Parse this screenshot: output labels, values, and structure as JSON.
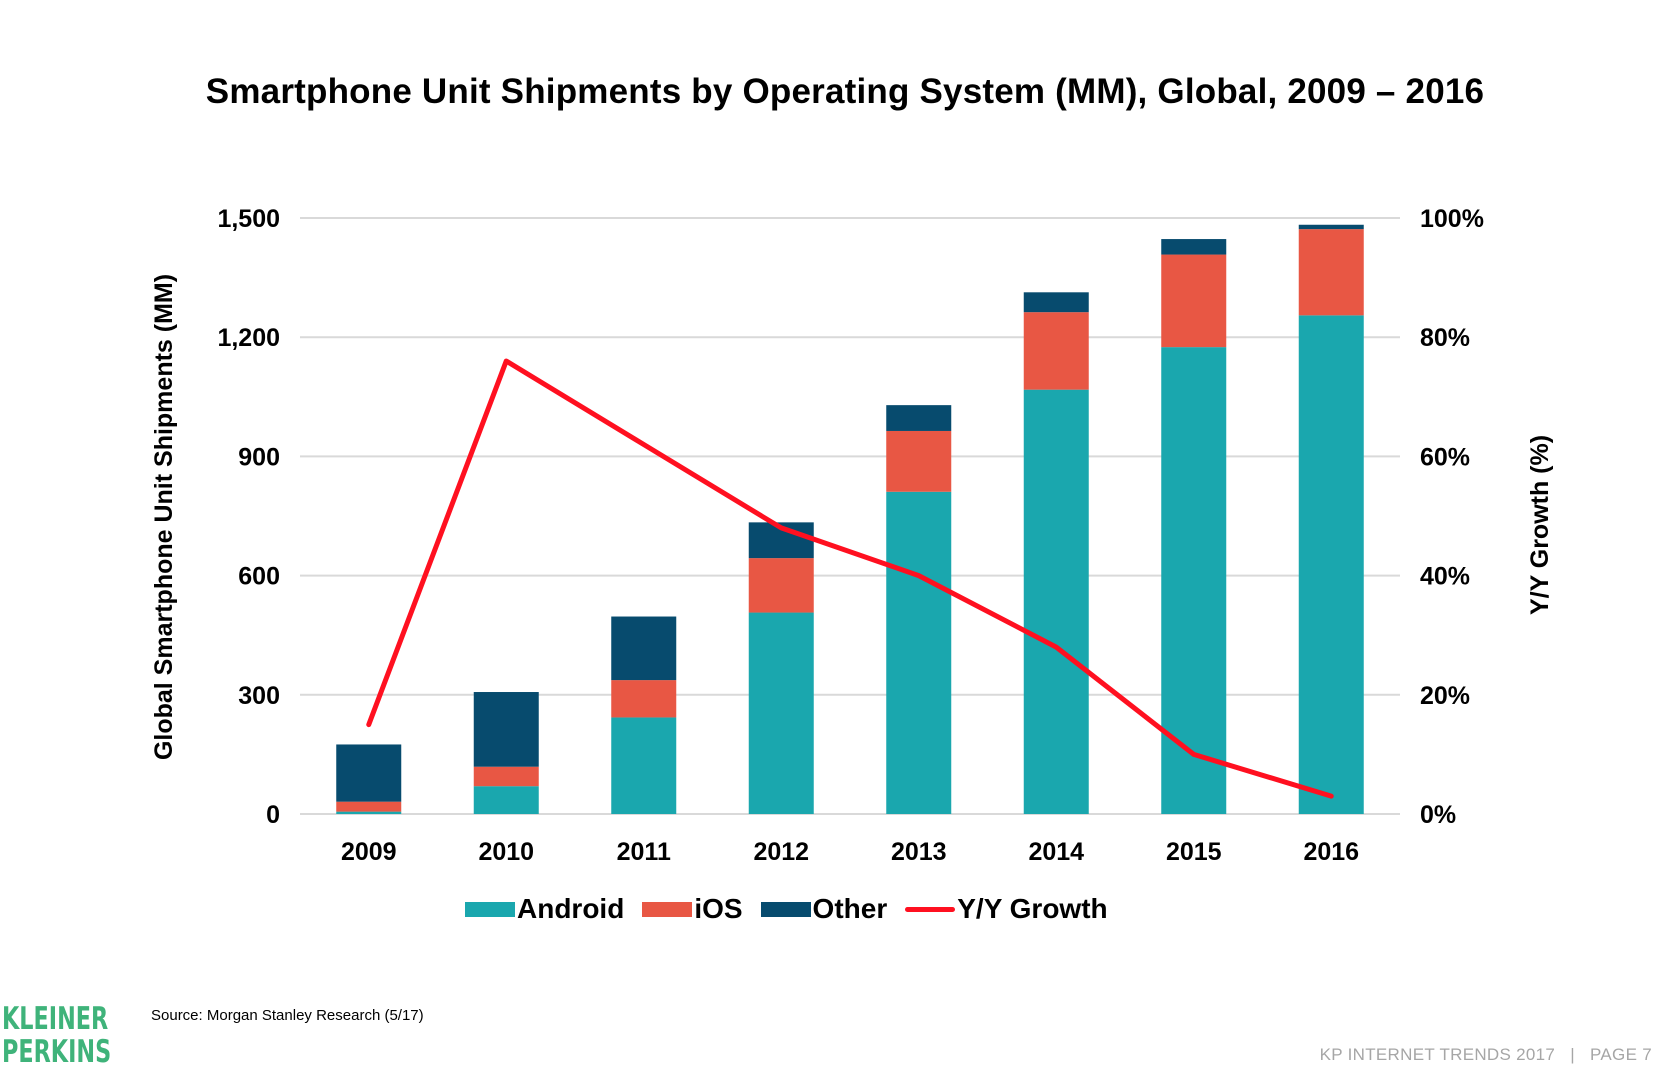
{
  "title": "Smartphone Unit Shipments by Operating System (MM), Global, 2009 – 2016",
  "source": "Source: Morgan Stanley Research (5/17)",
  "footer": "KP INTERNET TRENDS 2017   |   PAGE 7",
  "logo": {
    "line1": "KLEINER",
    "line2": "PERKINS"
  },
  "chart_data": {
    "type": "bar",
    "subtype": "stacked-bar-with-line",
    "title": "Smartphone Unit Shipments by Operating System (MM), Global, 2009 – 2016",
    "xlabel": "",
    "ylabel": "Global Smartphone Unit Shipments (MM)",
    "y2label": "Y/Y Growth (%)",
    "categories": [
      "2009",
      "2010",
      "2011",
      "2012",
      "2013",
      "2014",
      "2015",
      "2016"
    ],
    "ylim": [
      0,
      1500
    ],
    "y2lim": [
      0,
      100
    ],
    "yticks": [
      "0",
      "300",
      "600",
      "900",
      "1,200",
      "1,500"
    ],
    "y2ticks": [
      "0%",
      "20%",
      "40%",
      "60%",
      "80%",
      "100%"
    ],
    "grid": true,
    "legend_position": "bottom",
    "series": [
      {
        "name": "Android",
        "kind": "bar",
        "color": "#1aa7ae",
        "values": [
          6,
          70,
          243,
          507,
          811,
          1068,
          1175,
          1255
        ]
      },
      {
        "name": "iOS",
        "kind": "bar",
        "color": "#e85744",
        "values": [
          25,
          49,
          94,
          137,
          153,
          195,
          233,
          217
        ]
      },
      {
        "name": "Other",
        "kind": "bar",
        "color": "#074b6e",
        "values": [
          144,
          188,
          160,
          90,
          65,
          50,
          39,
          11
        ]
      },
      {
        "name": "Y/Y Growth",
        "kind": "line",
        "axis": "right",
        "color": "#ff1020",
        "values": [
          15,
          76,
          62,
          48,
          40,
          28,
          10,
          3
        ]
      }
    ]
  }
}
